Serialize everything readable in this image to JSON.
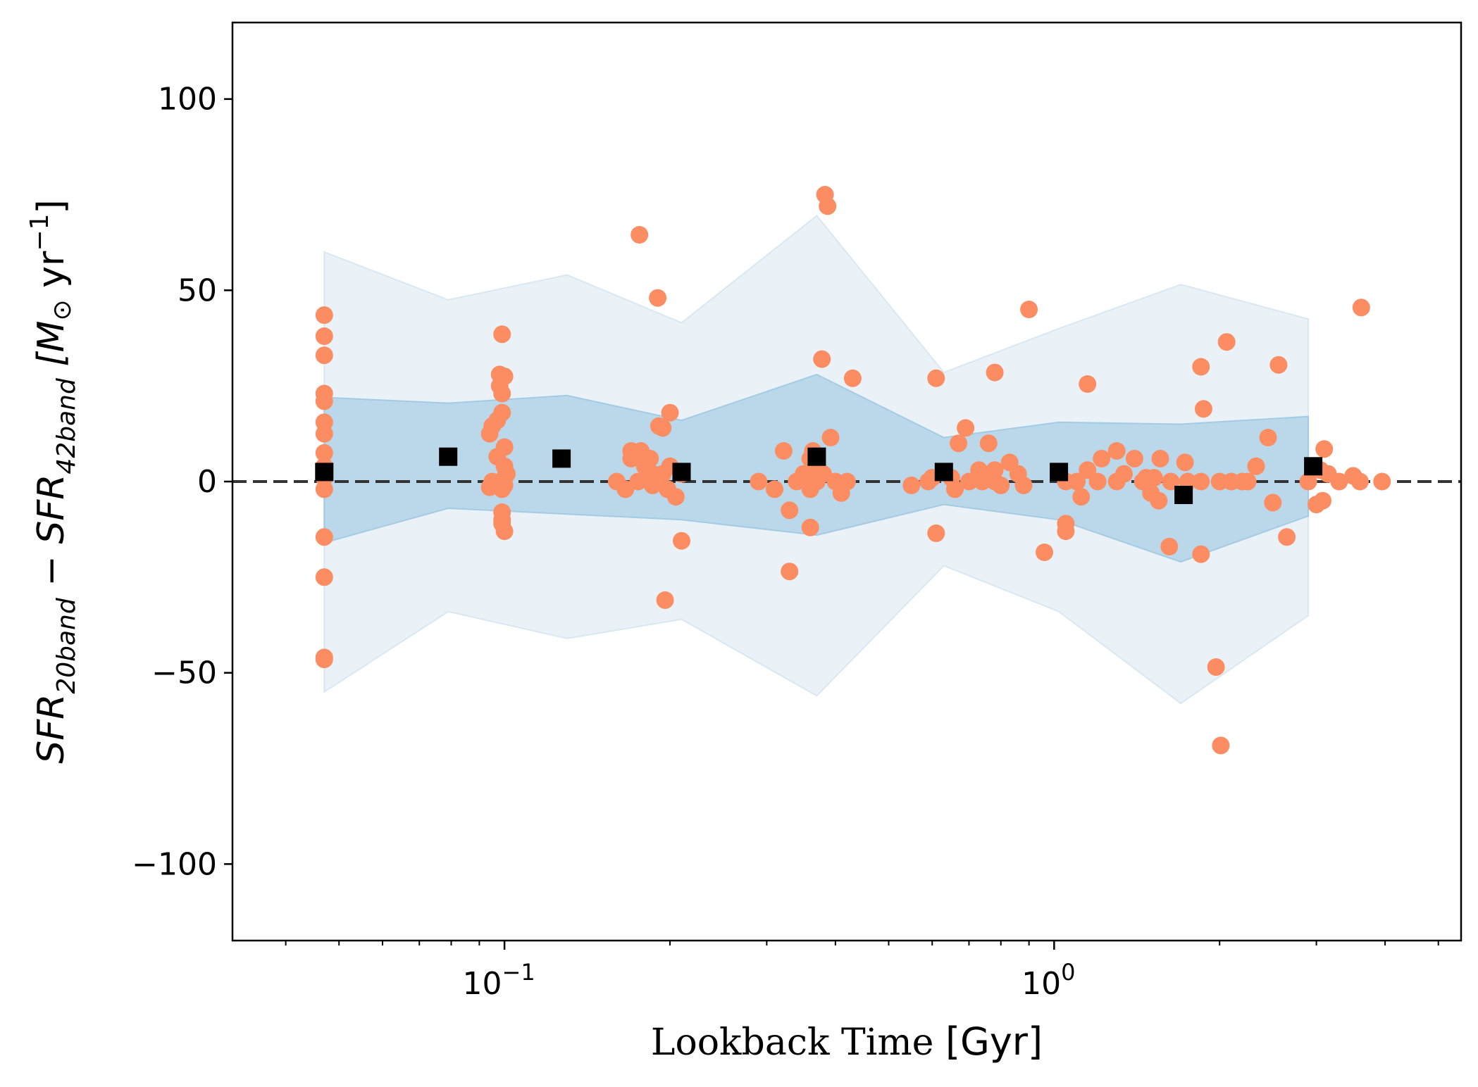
{
  "chart_data": {
    "type": "scatter",
    "xscale": "log",
    "xlim": [
      0.032,
      5.5
    ],
    "ylim": [
      -120,
      120
    ],
    "xlabel": {
      "prefix": "Lookback Time ",
      "unit": "[Gyr]"
    },
    "ylabel": {
      "a": "SFR",
      "a_sub": "20band",
      "minus": " − ",
      "b": "SFR",
      "b_sub": "42band",
      "unit_open": " [M",
      "unit_sun": "⊙",
      "unit_mid": " yr",
      "unit_exp": "−1",
      "unit_close": "]"
    },
    "y_ticks": [
      {
        "value": 100,
        "label": "100"
      },
      {
        "value": 50,
        "label": "50"
      },
      {
        "value": 0,
        "label": "0"
      },
      {
        "value": -50,
        "label": "−50"
      },
      {
        "value": -100,
        "label": "−100"
      }
    ],
    "x_major_ticks": [
      {
        "value": 0.1,
        "base": "10",
        "exp": "−1"
      },
      {
        "value": 1,
        "base": "10",
        "exp": "0"
      }
    ],
    "x_minor_ticks": [
      0.04,
      0.05,
      0.06,
      0.07,
      0.08,
      0.09,
      0.2,
      0.3,
      0.4,
      0.5,
      0.6,
      0.7,
      0.8,
      0.9,
      2,
      3,
      4,
      5
    ],
    "reference_line": {
      "y": 0,
      "style": "dashed",
      "color": "#333333"
    },
    "outer_band": {
      "name": "outer percentile range",
      "color": "#d6e6f1",
      "x": [
        0.047,
        0.079,
        0.13,
        0.21,
        0.37,
        0.63,
        1.02,
        1.7,
        2.9
      ],
      "upper": [
        60,
        47.5,
        54,
        41.5,
        69.5,
        28.5,
        40,
        51.5,
        42.5
      ],
      "lower": [
        -55,
        -34,
        -41,
        -36,
        -56,
        -22,
        -34,
        -58,
        -35
      ]
    },
    "inner_band": {
      "name": "inner percentile range",
      "color": "#9fc9e2",
      "x": [
        0.047,
        0.079,
        0.13,
        0.21,
        0.37,
        0.63,
        1.02,
        1.7,
        2.9
      ],
      "upper": [
        22,
        20.5,
        22.5,
        16,
        28,
        11.5,
        15.5,
        15,
        17
      ],
      "lower": [
        -16,
        -7,
        -8.5,
        -10,
        -14,
        -6,
        -10,
        -21,
        -9
      ]
    },
    "series": [
      {
        "name": "individual differences",
        "marker": "circle",
        "color": "#fc8d62",
        "points": [
          [
            0.047,
            43.5
          ],
          [
            0.047,
            38
          ],
          [
            0.047,
            33
          ],
          [
            0.047,
            23
          ],
          [
            0.047,
            21
          ],
          [
            0.047,
            15.5
          ],
          [
            0.047,
            12.5
          ],
          [
            0.047,
            7.5
          ],
          [
            0.047,
            4
          ],
          [
            0.047,
            1
          ],
          [
            0.047,
            -2
          ],
          [
            0.047,
            -14.5
          ],
          [
            0.047,
            -25
          ],
          [
            0.047,
            -46
          ],
          [
            0.047,
            -46.5
          ],
          [
            0.099,
            38.5
          ],
          [
            0.098,
            28
          ],
          [
            0.1,
            27.5
          ],
          [
            0.098,
            25
          ],
          [
            0.099,
            23
          ],
          [
            0.099,
            18
          ],
          [
            0.097,
            16
          ],
          [
            0.095,
            14.5
          ],
          [
            0.094,
            12.5
          ],
          [
            0.1,
            9
          ],
          [
            0.097,
            6.5
          ],
          [
            0.1,
            4
          ],
          [
            0.101,
            2
          ],
          [
            0.1,
            1
          ],
          [
            0.095,
            0
          ],
          [
            0.094,
            -1.5
          ],
          [
            0.099,
            -2
          ],
          [
            0.1,
            -1
          ],
          [
            0.099,
            -8
          ],
          [
            0.099,
            -10
          ],
          [
            0.099,
            -11
          ],
          [
            0.1,
            -13
          ],
          [
            0.176,
            64.5
          ],
          [
            0.19,
            48
          ],
          [
            0.2,
            18
          ],
          [
            0.194,
            14
          ],
          [
            0.191,
            14.5
          ],
          [
            0.17,
            8
          ],
          [
            0.177,
            8
          ],
          [
            0.184,
            6
          ],
          [
            0.17,
            6
          ],
          [
            0.18,
            4
          ],
          [
            0.2,
            4
          ],
          [
            0.186,
            2
          ],
          [
            0.194,
            2
          ],
          [
            0.21,
            2
          ],
          [
            0.16,
            0
          ],
          [
            0.175,
            0
          ],
          [
            0.186,
            -1
          ],
          [
            0.198,
            -2
          ],
          [
            0.166,
            -2
          ],
          [
            0.205,
            -4
          ],
          [
            0.21,
            -15.5
          ],
          [
            0.196,
            -31
          ],
          [
            0.383,
            75
          ],
          [
            0.387,
            72
          ],
          [
            0.378,
            32
          ],
          [
            0.43,
            27
          ],
          [
            0.392,
            11.5
          ],
          [
            0.322,
            8
          ],
          [
            0.364,
            8
          ],
          [
            0.36,
            6
          ],
          [
            0.37,
            4
          ],
          [
            0.35,
            2
          ],
          [
            0.38,
            2
          ],
          [
            0.34,
            0
          ],
          [
            0.29,
            0
          ],
          [
            0.37,
            0
          ],
          [
            0.4,
            0
          ],
          [
            0.42,
            0
          ],
          [
            0.31,
            -2
          ],
          [
            0.36,
            -2
          ],
          [
            0.41,
            -3
          ],
          [
            0.33,
            -7.5
          ],
          [
            0.36,
            -12
          ],
          [
            0.33,
            -23.5
          ],
          [
            0.61,
            27
          ],
          [
            0.69,
            14
          ],
          [
            0.67,
            10
          ],
          [
            0.76,
            10
          ],
          [
            0.73,
            3
          ],
          [
            0.78,
            3
          ],
          [
            0.83,
            5
          ],
          [
            0.86,
            2
          ],
          [
            0.6,
            1
          ],
          [
            0.65,
            1
          ],
          [
            0.7,
            0
          ],
          [
            0.74,
            0
          ],
          [
            0.78,
            0
          ],
          [
            0.55,
            -1
          ],
          [
            0.59,
            0
          ],
          [
            0.66,
            -2
          ],
          [
            0.8,
            -1
          ],
          [
            0.88,
            -1
          ],
          [
            0.9,
            45
          ],
          [
            0.78,
            28.5
          ],
          [
            0.61,
            -13.5
          ],
          [
            0.96,
            -18.5
          ],
          [
            1.15,
            25.5
          ],
          [
            1.3,
            8
          ],
          [
            1.22,
            6
          ],
          [
            1.4,
            6
          ],
          [
            1.56,
            6
          ],
          [
            1.15,
            3
          ],
          [
            1.34,
            2
          ],
          [
            1.47,
            1
          ],
          [
            1.52,
            1
          ],
          [
            1.05,
            0
          ],
          [
            1.1,
            0
          ],
          [
            1.2,
            0
          ],
          [
            1.3,
            0
          ],
          [
            1.45,
            0
          ],
          [
            1.63,
            0
          ],
          [
            1.75,
            0
          ],
          [
            1.5,
            -3
          ],
          [
            1.55,
            -5
          ],
          [
            1.12,
            -4
          ],
          [
            1.05,
            -11
          ],
          [
            1.05,
            -13
          ],
          [
            1.62,
            -17
          ],
          [
            1.73,
            5
          ],
          [
            1.85,
            0
          ],
          [
            2.06,
            36.5
          ],
          [
            1.85,
            30
          ],
          [
            2.56,
            30.5
          ],
          [
            1.87,
            19
          ],
          [
            2.45,
            11.5
          ],
          [
            2.33,
            4
          ],
          [
            2.0,
            0
          ],
          [
            2.1,
            0
          ],
          [
            2.2,
            0
          ],
          [
            2.25,
            0
          ],
          [
            2.5,
            -5.5
          ],
          [
            2.65,
            -14.5
          ],
          [
            1.85,
            -19
          ],
          [
            1.97,
            -48.5
          ],
          [
            2.01,
            -69
          ],
          [
            3.62,
            45.5
          ],
          [
            3.1,
            8.5
          ],
          [
            3.05,
            3
          ],
          [
            3.15,
            2
          ],
          [
            3.5,
            1.5
          ],
          [
            3.3,
            0
          ],
          [
            3.6,
            0
          ],
          [
            3.95,
            0
          ],
          [
            2.9,
            0
          ],
          [
            3.0,
            -6
          ],
          [
            3.08,
            -5
          ]
        ]
      },
      {
        "name": "binned median",
        "marker": "square",
        "color": "#000000",
        "points": [
          [
            0.047,
            2.5
          ],
          [
            0.079,
            6.5
          ],
          [
            0.127,
            6
          ],
          [
            0.21,
            2.5
          ],
          [
            0.37,
            6.5
          ],
          [
            0.63,
            2.5
          ],
          [
            1.02,
            2.5
          ],
          [
            1.72,
            -3.5
          ],
          [
            2.96,
            4
          ]
        ]
      }
    ]
  }
}
